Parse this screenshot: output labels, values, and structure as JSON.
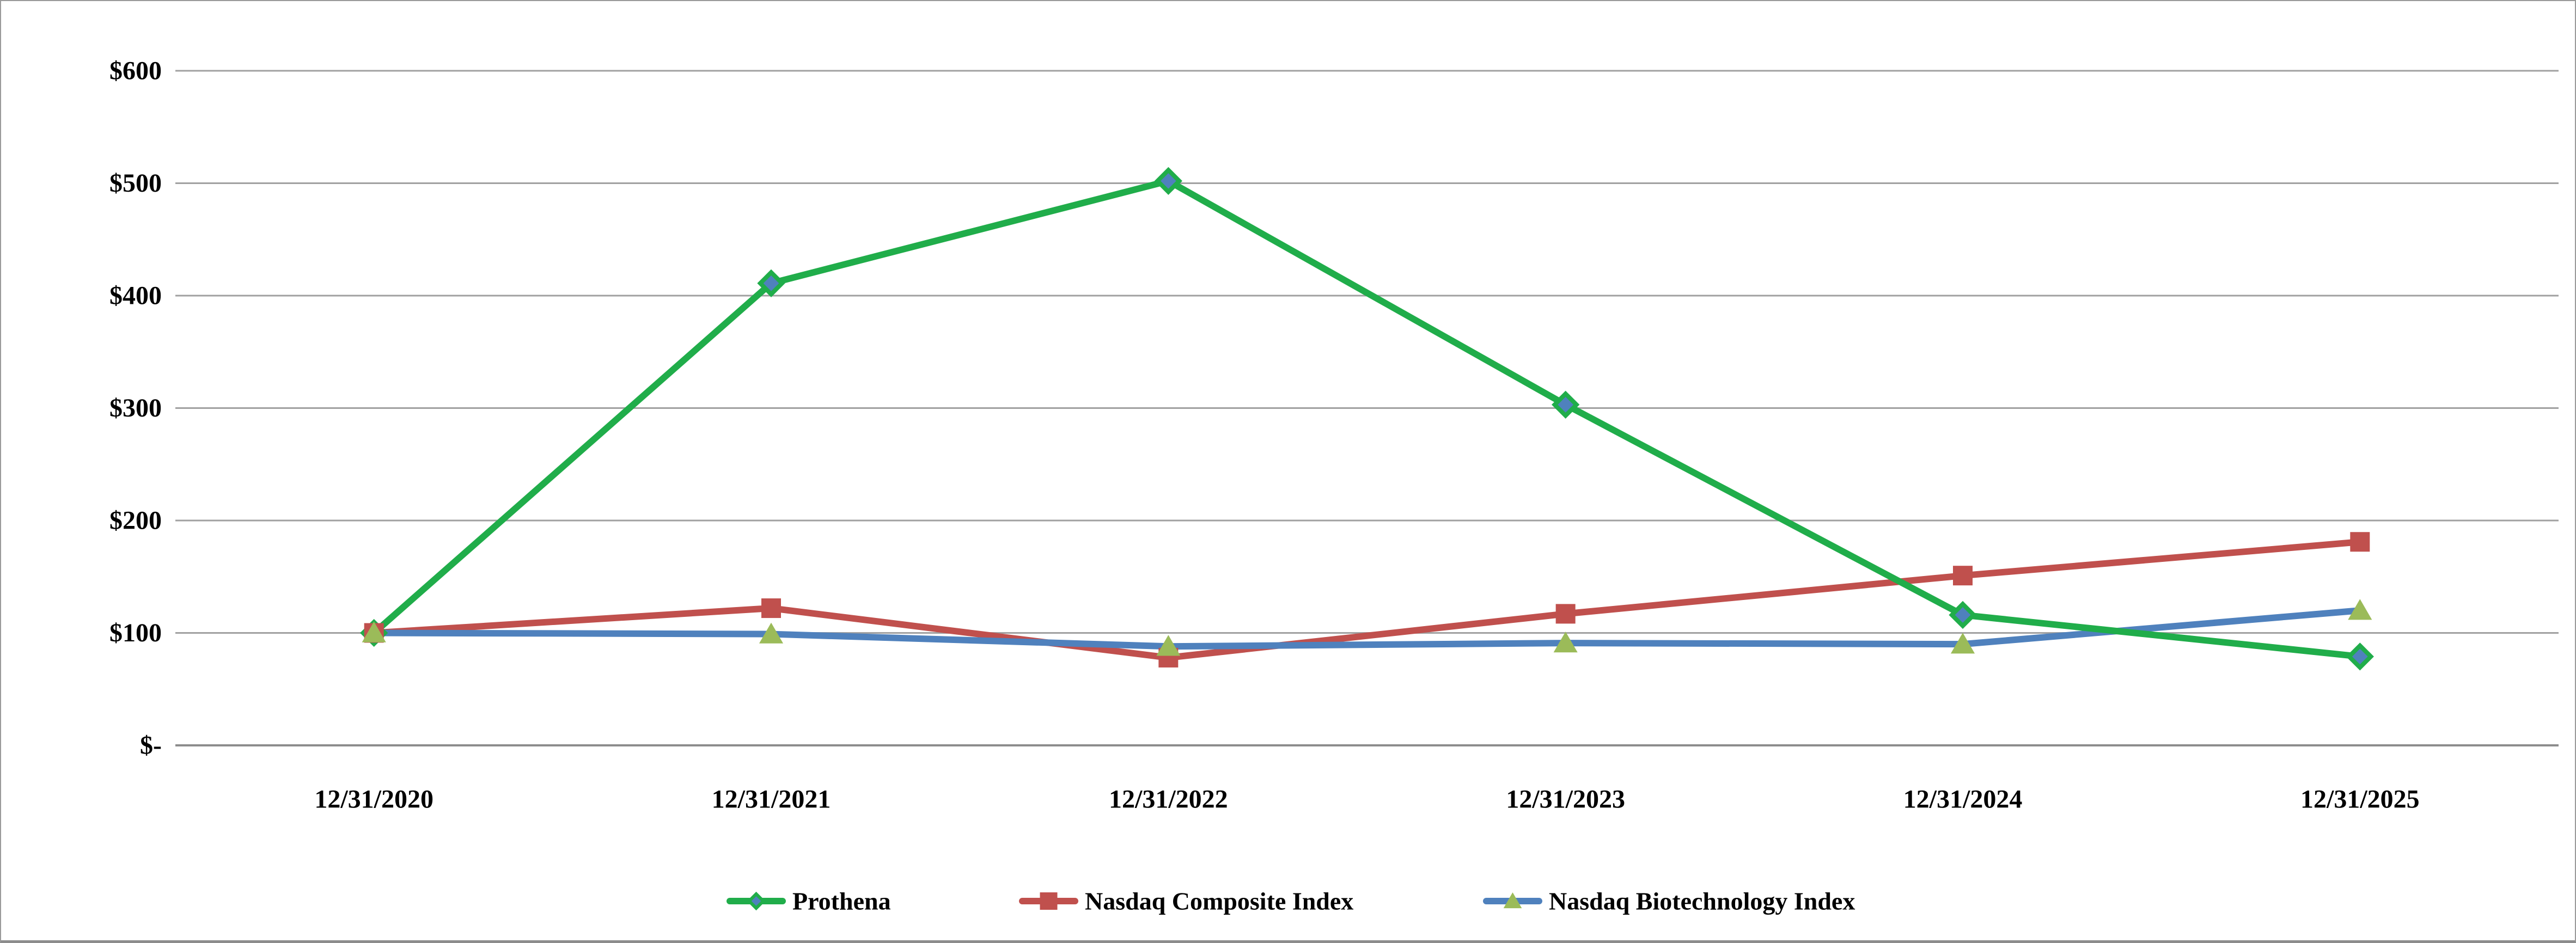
{
  "chart_data": {
    "type": "line",
    "title": "",
    "categories": [
      "12/31/2020",
      "12/31/2021",
      "12/31/2022",
      "12/31/2023",
      "12/31/2024",
      "12/31/2025"
    ],
    "series": [
      {
        "name": "Prothena",
        "marker": "diamond",
        "line_color": "#20AD4A",
        "marker_fill": "#4F81BD",
        "marker_stroke": "#20AD4A",
        "values": [
          100,
          411,
          502,
          303,
          116,
          79
        ]
      },
      {
        "name": "Nasdaq Composite Index",
        "marker": "square",
        "line_color": "#C0504D",
        "marker_fill": "#C0504D",
        "marker_stroke": "#C0504D",
        "values": [
          100,
          122,
          78,
          117,
          151,
          181
        ]
      },
      {
        "name": "Nasdaq Biotechnology Index",
        "marker": "triangle",
        "line_color": "#4F81BD",
        "marker_fill": "#9BBB59",
        "marker_stroke": "#9BBB59",
        "values": [
          100,
          99,
          88,
          91,
          90,
          120
        ]
      }
    ],
    "y_axis": {
      "min": 0,
      "max": 600,
      "step": 100,
      "tick_labels": [
        "$-",
        "$100",
        "$200",
        "$300",
        "$400",
        "$500",
        "$600"
      ]
    },
    "x_axis": {
      "tick_labels": [
        "12/31/2020",
        "12/31/2021",
        "12/31/2022",
        "12/31/2023",
        "12/31/2024",
        "12/31/2025"
      ]
    },
    "legend": {
      "position": "bottom",
      "entries": [
        "Prothena",
        "Nasdaq Composite Index",
        "Nasdaq Biotechnology Index"
      ]
    },
    "colors": {
      "gridline": "#A0A0A0",
      "axis_line": "#8C8C8C",
      "background": "#FFFFFF",
      "text": "#000000"
    }
  }
}
